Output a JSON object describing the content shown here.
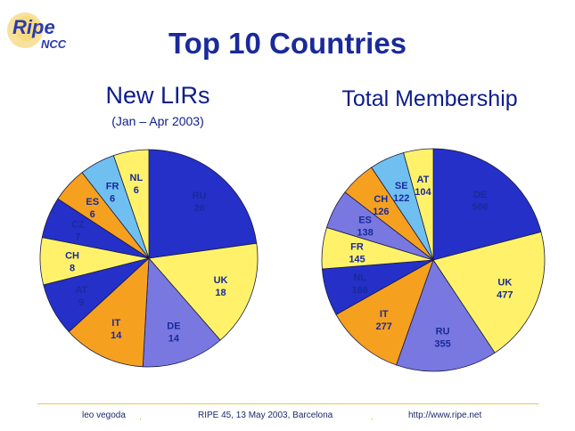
{
  "logo": {
    "ripe": "Ripe",
    "ncc": "NCC"
  },
  "title": "Top 10 Countries",
  "footer": {
    "author": "leo vegoda",
    "event": "RIPE 45, 13 May 2003, Barcelona",
    "url": "http://www.ripe.net"
  },
  "colors": {
    "blue": "#2430c8",
    "light_blue": "#6fc0f0",
    "yellow": "#fff26a",
    "orange": "#f6a020",
    "lavender": "#7878e0",
    "text": "#1a2a9a"
  },
  "chart_data": [
    {
      "type": "pie",
      "title": "New LIRs",
      "subtitle": "(Jan – Apr 2003)",
      "slices": [
        {
          "label": "RU",
          "value": 26,
          "color": "blue"
        },
        {
          "label": "UK",
          "value": 18,
          "color": "yellow"
        },
        {
          "label": "DE",
          "value": 14,
          "color": "lavender"
        },
        {
          "label": "IT",
          "value": 14,
          "color": "orange"
        },
        {
          "label": "AT",
          "value": 9,
          "color": "blue"
        },
        {
          "label": "CH",
          "value": 8,
          "color": "yellow"
        },
        {
          "label": "CZ",
          "value": 7,
          "color": "blue"
        },
        {
          "label": "ES",
          "value": 6,
          "color": "orange"
        },
        {
          "label": "FR",
          "value": 6,
          "color": "light_blue"
        },
        {
          "label": "NL",
          "value": 6,
          "color": "yellow"
        }
      ]
    },
    {
      "type": "pie",
      "title": "Total Membership",
      "slices": [
        {
          "label": "DE",
          "value": 506,
          "color": "blue"
        },
        {
          "label": "UK",
          "value": 477,
          "color": "yellow"
        },
        {
          "label": "RU",
          "value": 355,
          "color": "lavender"
        },
        {
          "label": "IT",
          "value": 277,
          "color": "orange"
        },
        {
          "label": "NL",
          "value": 166,
          "color": "blue"
        },
        {
          "label": "FR",
          "value": 145,
          "color": "yellow"
        },
        {
          "label": "ES",
          "value": 138,
          "color": "lavender"
        },
        {
          "label": "CH",
          "value": 126,
          "color": "orange"
        },
        {
          "label": "SE",
          "value": 122,
          "color": "light_blue"
        },
        {
          "label": "AT",
          "value": 104,
          "color": "yellow"
        }
      ]
    }
  ]
}
